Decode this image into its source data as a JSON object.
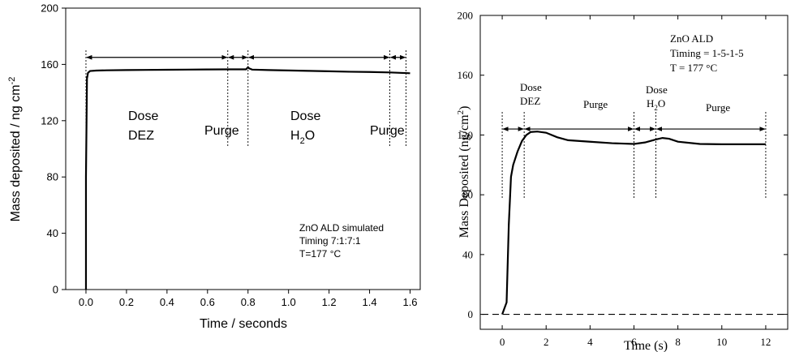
{
  "chart_data": [
    {
      "type": "line",
      "xlabel": "Time / seconds",
      "ylabel": "Mass deposited / ng cm",
      "ylabel_sup": "-2",
      "xlim": [
        -0.1,
        1.65
      ],
      "ylim": [
        0,
        200
      ],
      "xticks": [
        "0.0",
        "0.2",
        "0.4",
        "0.6",
        "0.8",
        "1.0",
        "1.2",
        "1.4",
        "1.6"
      ],
      "xtick_values": [
        0.0,
        0.2,
        0.4,
        0.6,
        0.8,
        1.0,
        1.2,
        1.4,
        1.6
      ],
      "yticks": [
        "0",
        "40",
        "80",
        "120",
        "160",
        "200"
      ],
      "ytick_values": [
        0,
        40,
        80,
        120,
        160,
        200
      ],
      "series": [
        {
          "x": [
            0.0,
            0.0,
            0.005,
            0.01,
            0.02,
            0.05,
            0.1,
            0.2,
            0.3,
            0.4,
            0.5,
            0.6,
            0.7,
            0.79,
            0.8,
            0.805,
            0.82,
            0.9,
            1.0,
            1.1,
            1.2,
            1.3,
            1.4,
            1.5,
            1.55,
            1.6
          ],
          "y": [
            0,
            80,
            150,
            154,
            155.3,
            155.6,
            155.8,
            156.0,
            156.1,
            156.2,
            156.3,
            156.4,
            156.5,
            156.5,
            158.0,
            157.2,
            156.3,
            156.0,
            155.7,
            155.4,
            155.1,
            154.8,
            154.6,
            154.3,
            154.0,
            153.7
          ]
        }
      ],
      "boundaries": [
        0.0,
        0.7,
        0.8,
        1.5,
        1.58
      ],
      "arrow_y": 165,
      "annotations": {
        "dose_dez": [
          "Dose",
          "DEZ"
        ],
        "purge1": "Purge",
        "dose_h2o_line1": "Dose",
        "dose_h2o_h": "H",
        "dose_h2o_sub": "2",
        "dose_h2o_o": "O",
        "purge2": "Purge",
        "info": [
          "ZnO ALD simulated",
          "Timing 7:1:7:1",
          "T=177 °C"
        ]
      }
    },
    {
      "type": "line",
      "xlabel": "Time (s)",
      "ylabel_pre": "Mass Deposited (ng/cm",
      "ylabel_sup": "2",
      "ylabel_post": ")",
      "xlim": [
        -1,
        13
      ],
      "ylim": [
        -10,
        200
      ],
      "xticks": [
        "0",
        "2",
        "4",
        "6",
        "8",
        "10",
        "12"
      ],
      "xtick_values": [
        0,
        2,
        4,
        6,
        8,
        10,
        12
      ],
      "yticks": [
        "0",
        "40",
        "80",
        "120",
        "160",
        "200"
      ],
      "ytick_values": [
        0,
        40,
        80,
        120,
        160,
        200
      ],
      "series": [
        {
          "x": [
            0.0,
            0.2,
            0.3,
            0.4,
            0.5,
            0.7,
            0.9,
            1.1,
            1.3,
            1.6,
            2.0,
            2.5,
            3.0,
            4.0,
            5.0,
            6.0,
            6.5,
            7.0,
            7.3,
            7.6,
            8.0,
            9.0,
            10.0,
            11.0,
            12.0
          ],
          "y": [
            0,
            8,
            60,
            92,
            100,
            109,
            116,
            120,
            122,
            122.3,
            121.5,
            118.5,
            116.5,
            115.5,
            114.5,
            114.0,
            115.0,
            117.0,
            118.0,
            117.5,
            115.5,
            114.0,
            113.8,
            113.8,
            113.8
          ]
        }
      ],
      "baseline_y": 0,
      "boundaries": [
        0,
        1,
        6,
        7,
        12
      ],
      "arrow_y": 124,
      "annotations": {
        "info": [
          "ZnO ALD",
          "Timing = 1-5-1-5",
          "T = 177 °C"
        ],
        "dose_dez": [
          "Dose",
          "DEZ"
        ],
        "purge1": "Purge",
        "dose_h2o_line1": "Dose",
        "dose_h2o_h": "H",
        "dose_h2o_sub": "2",
        "dose_h2o_o": "O",
        "purge2": "Purge"
      }
    }
  ]
}
